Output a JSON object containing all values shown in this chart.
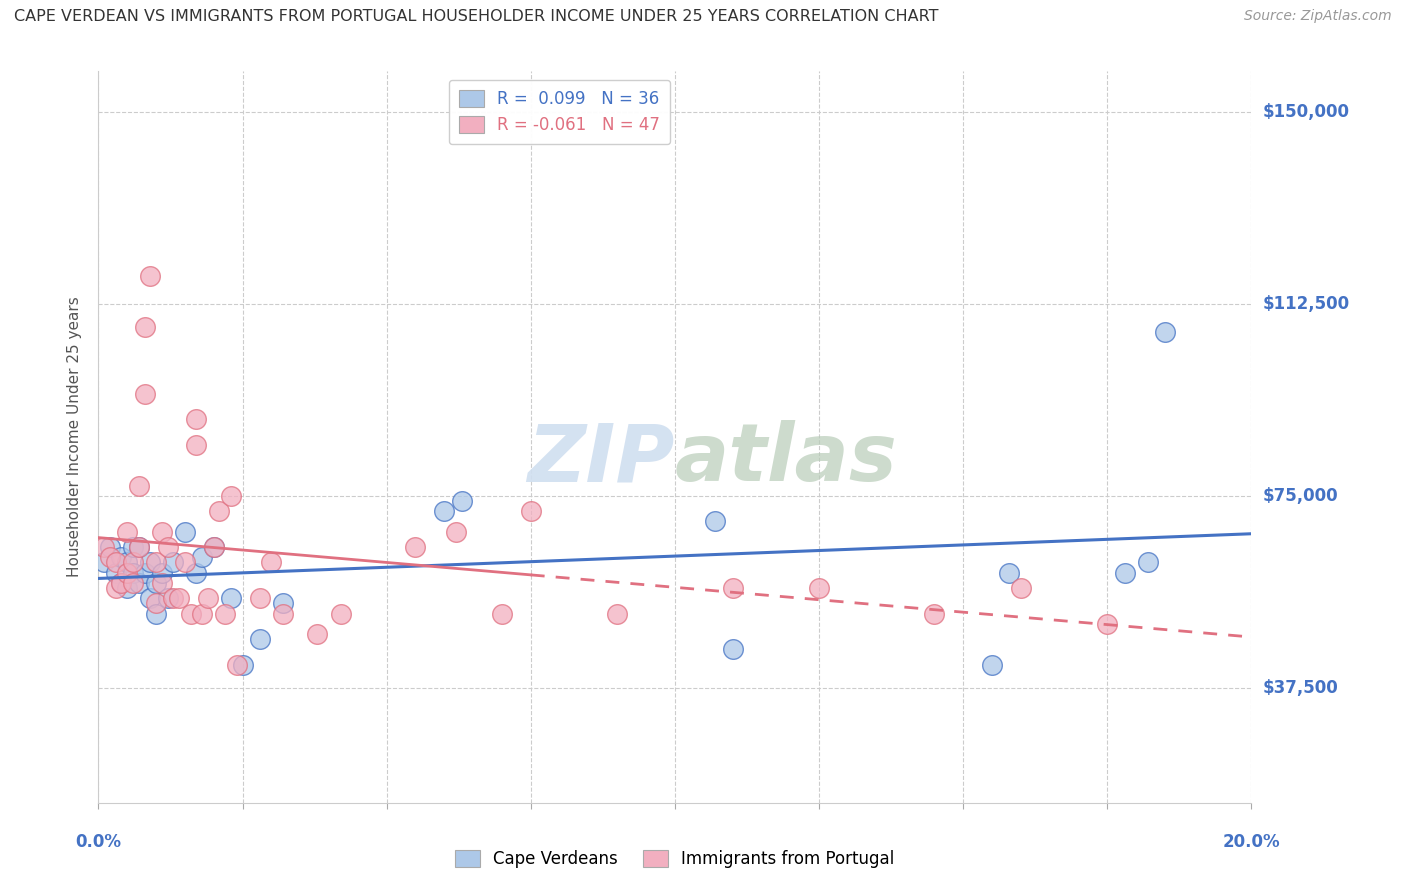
{
  "title": "CAPE VERDEAN VS IMMIGRANTS FROM PORTUGAL HOUSEHOLDER INCOME UNDER 25 YEARS CORRELATION CHART",
  "source": "Source: ZipAtlas.com",
  "ylabel": "Householder Income Under 25 years",
  "ytick_labels": [
    "$37,500",
    "$75,000",
    "$112,500",
    "$150,000"
  ],
  "ytick_values": [
    37500,
    75000,
    112500,
    150000
  ],
  "xmin": 0.0,
  "xmax": 0.2,
  "ymin": 15000,
  "ymax": 158000,
  "legend_blue_r": "R =  0.099",
  "legend_blue_n": "N = 36",
  "legend_pink_r": "R = -0.061",
  "legend_pink_n": "N = 47",
  "blue_color": "#adc8e8",
  "pink_color": "#f2afc0",
  "blue_line_color": "#4472c4",
  "pink_line_color": "#e07080",
  "watermark_color": "#d0dff0",
  "blue_scatter_x": [
    0.001,
    0.002,
    0.003,
    0.004,
    0.004,
    0.005,
    0.005,
    0.006,
    0.006,
    0.007,
    0.007,
    0.008,
    0.009,
    0.009,
    0.01,
    0.01,
    0.011,
    0.012,
    0.013,
    0.015,
    0.017,
    0.018,
    0.02,
    0.023,
    0.025,
    0.028,
    0.032,
    0.06,
    0.063,
    0.107,
    0.11,
    0.155,
    0.158,
    0.178,
    0.182,
    0.185
  ],
  "blue_scatter_y": [
    62000,
    65000,
    60000,
    63000,
    58000,
    62000,
    57000,
    65000,
    60000,
    65000,
    58000,
    60000,
    62000,
    55000,
    58000,
    52000,
    60000,
    55000,
    62000,
    68000,
    60000,
    63000,
    65000,
    55000,
    42000,
    47000,
    54000,
    72000,
    74000,
    70000,
    45000,
    42000,
    60000,
    60000,
    62000,
    107000
  ],
  "pink_scatter_x": [
    0.001,
    0.002,
    0.003,
    0.003,
    0.004,
    0.005,
    0.005,
    0.006,
    0.006,
    0.007,
    0.007,
    0.008,
    0.008,
    0.009,
    0.01,
    0.01,
    0.011,
    0.011,
    0.012,
    0.013,
    0.014,
    0.015,
    0.016,
    0.017,
    0.017,
    0.018,
    0.019,
    0.02,
    0.021,
    0.022,
    0.023,
    0.024,
    0.028,
    0.03,
    0.032,
    0.038,
    0.042,
    0.055,
    0.062,
    0.07,
    0.075,
    0.09,
    0.11,
    0.125,
    0.145,
    0.16,
    0.175
  ],
  "pink_scatter_y": [
    65000,
    63000,
    62000,
    57000,
    58000,
    68000,
    60000,
    62000,
    58000,
    77000,
    65000,
    95000,
    108000,
    118000,
    54000,
    62000,
    58000,
    68000,
    65000,
    55000,
    55000,
    62000,
    52000,
    90000,
    85000,
    52000,
    55000,
    65000,
    72000,
    52000,
    75000,
    42000,
    55000,
    62000,
    52000,
    48000,
    52000,
    65000,
    68000,
    52000,
    72000,
    52000,
    57000,
    57000,
    52000,
    57000,
    50000
  ]
}
